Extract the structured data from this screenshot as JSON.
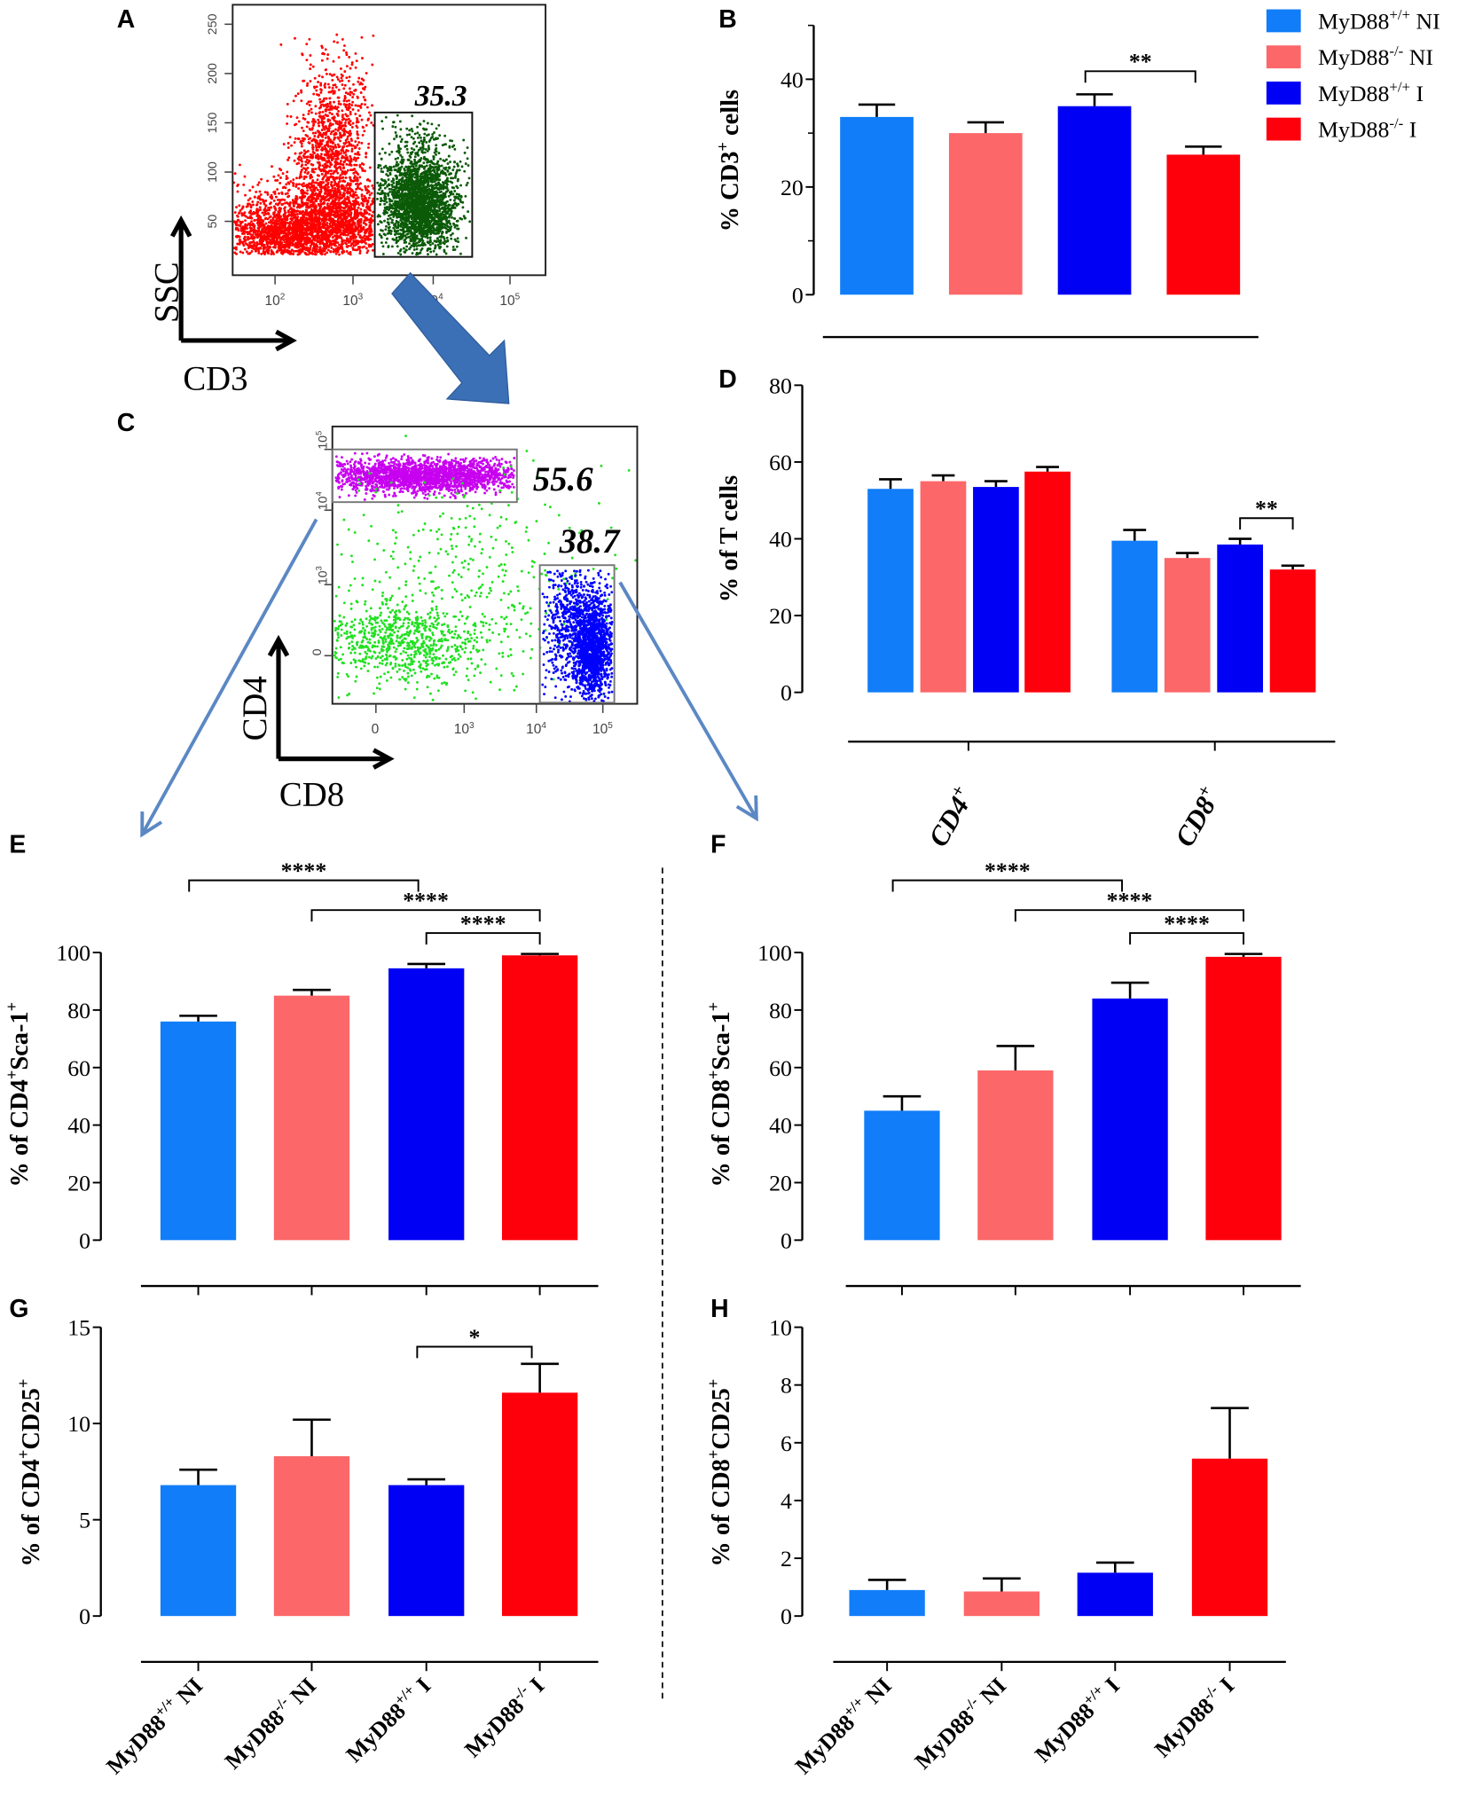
{
  "legend": [
    {
      "segments": [
        {
          "t": "MyD88"
        },
        {
          "t": "+/+",
          "sup": true
        },
        {
          "t": " NI"
        }
      ],
      "color": "#117df8"
    },
    {
      "segments": [
        {
          "t": "MyD88"
        },
        {
          "t": "-/-",
          "sup": true
        },
        {
          "t": " NI"
        }
      ],
      "color": "#fc6769"
    },
    {
      "segments": [
        {
          "t": "MyD88"
        },
        {
          "t": "+/+",
          "sup": true
        },
        {
          "t": " I"
        }
      ],
      "color": "#0000f5"
    },
    {
      "segments": [
        {
          "t": "MyD88"
        },
        {
          "t": "-/-",
          "sup": true
        },
        {
          "t": " I"
        }
      ],
      "color": "#fd000c"
    }
  ],
  "flow": {
    "A": {
      "panel": "A",
      "gate_percent": "35.3",
      "x_axis_label": "CD3",
      "y_axis_label": "SSC",
      "x_ticks": [
        {
          "b": "10",
          "e": "2"
        },
        {
          "b": "10",
          "e": "3"
        },
        {
          "b": "10",
          "e": "4"
        },
        {
          "b": "10",
          "e": "5"
        }
      ],
      "y_ticks": [
        "50",
        "100",
        "150",
        "200",
        "250"
      ],
      "colors": {
        "ungated": "#ff0000",
        "gated": "#0b5a08"
      }
    },
    "C": {
      "panel": "C",
      "gates": [
        {
          "name": "CD4",
          "percent": "55.6"
        },
        {
          "name": "CD8",
          "percent": "38.7"
        }
      ],
      "x_axis_label": "CD8",
      "y_axis_label": "CD4",
      "x_ticks": [
        {
          "b": "0"
        },
        {
          "b": "10",
          "e": "3"
        },
        {
          "b": "10",
          "e": "4"
        },
        {
          "b": "10",
          "e": "5"
        }
      ],
      "y_ticks": [
        {
          "b": "0"
        },
        {
          "b": "10",
          "e": "3"
        },
        {
          "b": "10",
          "e": "4"
        },
        {
          "b": "10",
          "e": "5"
        }
      ],
      "colors": {
        "cd4": "#c800f0",
        "cd8": "#0000ff",
        "other": "#22e022"
      }
    }
  },
  "chart_data": [
    {
      "panel": "B",
      "type": "bar",
      "ylabel": [
        {
          "t": "% CD3"
        },
        {
          "t": "+",
          "sup": true
        },
        {
          "t": " cells"
        }
      ],
      "ylim": [
        0,
        50
      ],
      "yticks": [
        0,
        20,
        40
      ],
      "categories": [
        "MyD88+/+ NI",
        "MyD88-/- NI",
        "MyD88+/+ I",
        "MyD88-/- I"
      ],
      "values": [
        33,
        30,
        35,
        26
      ],
      "error_upper": [
        35.3,
        32,
        37.2,
        27.5
      ],
      "significance": [
        {
          "from": 2,
          "to": 3,
          "label": "**"
        }
      ]
    },
    {
      "panel": "D",
      "type": "bar",
      "ylabel": [
        {
          "t": "% of T cells"
        }
      ],
      "ylim": [
        0,
        80
      ],
      "yticks": [
        0,
        20,
        40,
        60,
        80
      ],
      "groups": [
        [
          {
            "t": "CD4"
          },
          {
            "t": "+",
            "sup": true
          }
        ],
        [
          {
            "t": "CD8"
          },
          {
            "t": "+",
            "sup": true
          }
        ]
      ],
      "series": [
        {
          "name": "MyD88+/+ NI",
          "values": [
            53,
            39.5
          ],
          "error_upper": [
            55.5,
            42.3
          ]
        },
        {
          "name": "MyD88-/- NI",
          "values": [
            55,
            35
          ],
          "error_upper": [
            56.5,
            36.3
          ]
        },
        {
          "name": "MyD88+/+ I",
          "values": [
            53.5,
            38.5
          ],
          "error_upper": [
            55,
            40
          ]
        },
        {
          "name": "MyD88-/- I",
          "values": [
            57.5,
            32
          ],
          "error_upper": [
            58.7,
            33
          ]
        }
      ],
      "significance": [
        {
          "group": 1,
          "from": 2,
          "to": 3,
          "label": "**"
        }
      ]
    },
    {
      "panel": "E",
      "type": "bar",
      "ylabel": [
        {
          "t": "% of CD4"
        },
        {
          "t": "+",
          "sup": true
        },
        {
          "t": "Sca-1"
        },
        {
          "t": "+",
          "sup": true
        }
      ],
      "ylim": [
        0,
        100
      ],
      "yticks": [
        0,
        20,
        40,
        60,
        80,
        100
      ],
      "categories": [
        "MyD88+/+ NI",
        "MyD88-/- NI",
        "MyD88+/+ I",
        "MyD88-/- I"
      ],
      "values": [
        76,
        85,
        94.5,
        99
      ],
      "error_upper": [
        78,
        87,
        96,
        99.5
      ],
      "significance": [
        {
          "from": 0,
          "to": 2,
          "label": "****"
        },
        {
          "from": 1,
          "to": 3,
          "label": "****"
        },
        {
          "from": 2,
          "to": 3,
          "label": "****"
        }
      ]
    },
    {
      "panel": "F",
      "type": "bar",
      "ylabel": [
        {
          "t": "% of CD8"
        },
        {
          "t": "+",
          "sup": true
        },
        {
          "t": "Sca-1"
        },
        {
          "t": "+",
          "sup": true
        }
      ],
      "ylim": [
        0,
        100
      ],
      "yticks": [
        0,
        20,
        40,
        60,
        80,
        100
      ],
      "categories": [
        "MyD88+/+ NI",
        "MyD88-/- NI",
        "MyD88+/+ I",
        "MyD88-/- I"
      ],
      "values": [
        45,
        59,
        84,
        98.5
      ],
      "error_upper": [
        50,
        67.5,
        89.5,
        99.5
      ],
      "significance": [
        {
          "from": 0,
          "to": 2,
          "label": "****"
        },
        {
          "from": 1,
          "to": 3,
          "label": "****"
        },
        {
          "from": 2,
          "to": 3,
          "label": "****"
        }
      ]
    },
    {
      "panel": "G",
      "type": "bar",
      "ylabel": [
        {
          "t": "% of CD4"
        },
        {
          "t": "+",
          "sup": true
        },
        {
          "t": "CD25"
        },
        {
          "t": "+",
          "sup": true
        }
      ],
      "ylim": [
        0,
        15
      ],
      "yticks": [
        0,
        5,
        10,
        15
      ],
      "categories": [
        "MyD88+/+ NI",
        "MyD88-/- NI",
        "MyD88+/+ I",
        "MyD88-/- I"
      ],
      "xticklabels": [
        [
          {
            "t": "MyD88"
          },
          {
            "t": "+/+",
            "sup": true
          },
          {
            "t": " NI"
          }
        ],
        [
          {
            "t": "MyD88"
          },
          {
            "t": "-/-",
            "sup": true
          },
          {
            "t": " NI"
          }
        ],
        [
          {
            "t": "MyD88"
          },
          {
            "t": "+/+",
            "sup": true
          },
          {
            "t": " I"
          }
        ],
        [
          {
            "t": "MyD88"
          },
          {
            "t": "-/-",
            "sup": true
          },
          {
            "t": " I"
          }
        ]
      ],
      "values": [
        6.8,
        8.3,
        6.8,
        11.6
      ],
      "error_upper": [
        7.6,
        10.2,
        7.1,
        13.1
      ],
      "significance": [
        {
          "from": 2,
          "to": 3,
          "label": "*"
        }
      ]
    },
    {
      "panel": "H",
      "type": "bar",
      "ylabel": [
        {
          "t": "% of CD8"
        },
        {
          "t": "+",
          "sup": true
        },
        {
          "t": "CD25"
        },
        {
          "t": "+",
          "sup": true
        }
      ],
      "ylim": [
        0,
        10
      ],
      "yticks": [
        0,
        2,
        4,
        6,
        8,
        10
      ],
      "categories": [
        "MyD88+/+ NI",
        "MyD88-/- NI",
        "MyD88+/+ I",
        "MyD88-/- I"
      ],
      "xticklabels": [
        [
          {
            "t": "MyD88"
          },
          {
            "t": "+/+",
            "sup": true
          },
          {
            "t": " NI"
          }
        ],
        [
          {
            "t": "MyD88"
          },
          {
            "t": "-/-",
            "sup": true
          },
          {
            "t": " NI"
          }
        ],
        [
          {
            "t": "MyD88"
          },
          {
            "t": "+/+",
            "sup": true
          },
          {
            "t": " I"
          }
        ],
        [
          {
            "t": "MyD88"
          },
          {
            "t": "-/-",
            "sup": true
          },
          {
            "t": " I"
          }
        ]
      ],
      "values": [
        0.9,
        0.85,
        1.5,
        5.45
      ],
      "error_upper": [
        1.25,
        1.3,
        1.85,
        7.2
      ],
      "significance": []
    }
  ]
}
